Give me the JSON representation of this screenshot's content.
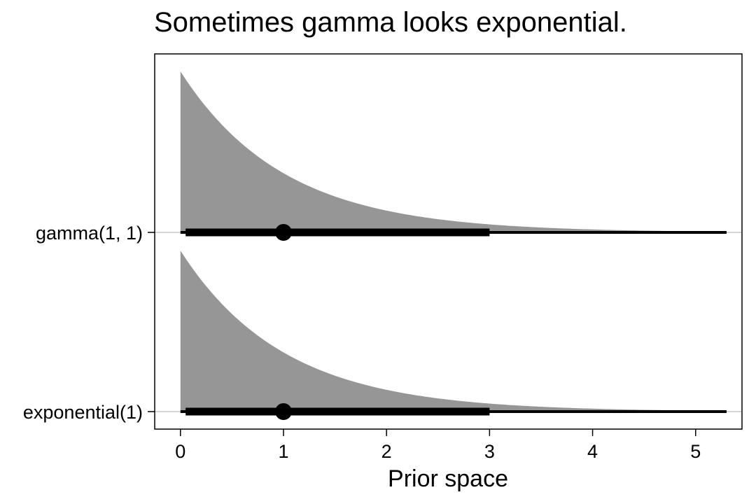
{
  "chart_data": {
    "type": "halfeye",
    "title": "Sometimes gamma looks exponential.",
    "xlabel": "Prior space",
    "ylabel": "",
    "xlim": [
      -0.25,
      5.45
    ],
    "xticks": [
      0,
      1,
      2,
      3,
      4,
      5
    ],
    "grid": false,
    "legend": "none",
    "categories": [
      "gamma(1, 1)",
      "exponential(1)"
    ],
    "series": [
      {
        "name": "gamma(1, 1)",
        "distribution": "gamma",
        "shape": 1,
        "rate": 1,
        "density_range": [
          0,
          5.3
        ],
        "point_median": 1.0,
        "interval_thick": [
          0.05,
          3.0
        ],
        "interval_thin": [
          0.0,
          5.3
        ]
      },
      {
        "name": "exponential(1)",
        "distribution": "exponential",
        "rate": 1,
        "density_range": [
          0,
          5.3
        ],
        "point_median": 1.0,
        "interval_thick": [
          0.05,
          3.0
        ],
        "interval_thin": [
          0.0,
          5.3
        ]
      }
    ],
    "colors": {
      "density_fill": "#969696",
      "interval": "#000000",
      "point": "#000000",
      "baseline": "#c8c8c8",
      "frame": "#000000"
    }
  }
}
